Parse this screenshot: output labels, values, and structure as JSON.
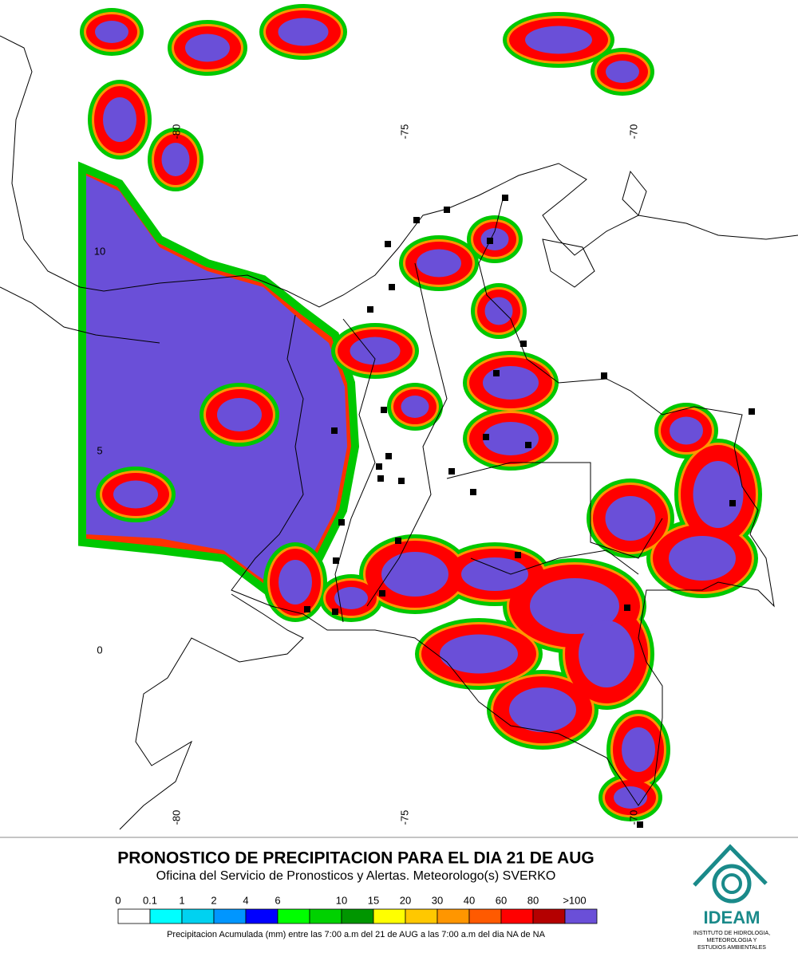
{
  "map": {
    "lon_labels_top": [
      "-80",
      "-75",
      "-70"
    ],
    "lon_labels_bottom": [
      "-80",
      "-75",
      "-70"
    ],
    "lat_labels": [
      "10",
      "5",
      "0"
    ]
  },
  "header": {
    "title": "PRONOSTICO DE PRECIPITACION PARA EL DIA 21 DE AUG",
    "subtitle": "Oficina del Servicio de Pronosticos y Alertas. Meteorologo(s) SVERKO"
  },
  "legend": {
    "labels": [
      "0",
      "0.1",
      "1",
      "2",
      "4",
      "6",
      "10",
      "15",
      "20",
      "30",
      "40",
      "60",
      "80",
      ">100"
    ],
    "colors": [
      "#ffffff",
      "#00ffff",
      "#00d2f0",
      "#0096ff",
      "#0000ff",
      "#00ff00",
      "#00d200",
      "#009600",
      "#ffff00",
      "#ffc800",
      "#ff9600",
      "#ff5a00",
      "#ff0000",
      "#b40000",
      "#6a4fd8"
    ],
    "caption": "Precipitacion Acumulada (mm) entre las 7:00 a.m del 21 de AUG a las 7:00 a.m del dia NA de NA"
  },
  "logo": {
    "name": "IDEAM",
    "line1": "INSTITUTO DE HIDROLOGIA,",
    "line2": "METEOROLOGIA Y",
    "line3": "ESTUDIOS AMBIENTALES"
  }
}
